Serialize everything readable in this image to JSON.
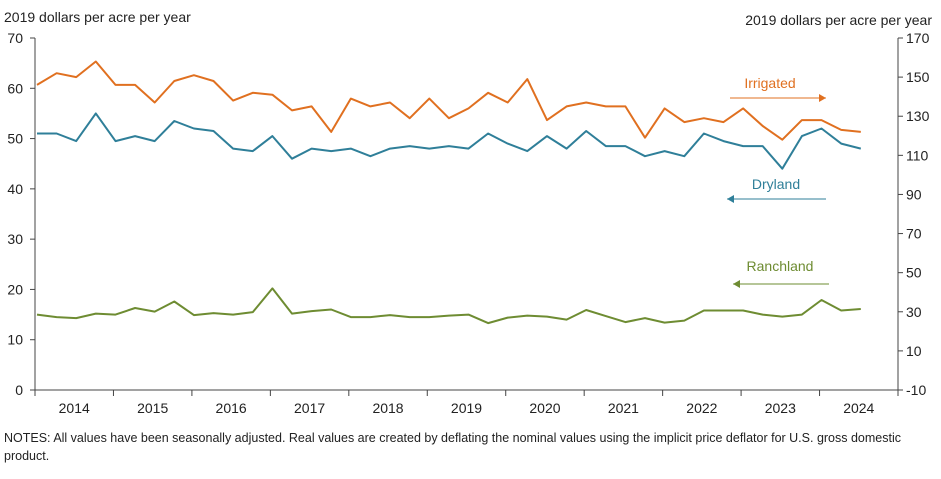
{
  "chart_data": {
    "type": "line",
    "left_axis_title": "2019 dollars per acre per year",
    "right_axis_title": "2019 dollars per acre per year",
    "left_ylim": [
      0,
      70
    ],
    "left_ticks": [
      "0",
      "10",
      "20",
      "30",
      "40",
      "50",
      "60",
      "70"
    ],
    "right_ylim": [
      -10,
      170
    ],
    "right_ticks": [
      "-10",
      "10",
      "30",
      "50",
      "70",
      "90",
      "110",
      "130",
      "150",
      "170"
    ],
    "x_labels": [
      "2014",
      "2015",
      "2016",
      "2017",
      "2018",
      "2019",
      "2020",
      "2021",
      "2022",
      "2023",
      "2024"
    ],
    "quarters_per_year": 4,
    "series": [
      {
        "name": "Irrigated",
        "axis": "right",
        "color": "#e07020",
        "arrow": "right",
        "values": [
          146,
          152,
          150,
          158,
          146,
          146,
          137,
          148,
          151,
          148,
          138,
          142,
          141,
          133,
          135,
          122,
          139,
          135,
          137,
          129,
          139,
          129,
          134,
          142,
          137,
          149,
          128,
          135,
          137,
          135,
          135,
          119,
          134,
          127,
          129,
          127,
          134,
          125,
          118,
          128,
          128,
          123,
          122
        ]
      },
      {
        "name": "Dryland",
        "axis": "left",
        "color": "#2f7f99",
        "arrow": "left",
        "values": [
          51,
          51,
          49.5,
          55,
          49.5,
          50.5,
          49.5,
          53.5,
          52,
          51.5,
          48,
          47.5,
          50.5,
          46,
          48,
          47.5,
          48,
          46.5,
          48,
          48.5,
          48,
          48.5,
          48,
          51,
          49,
          47.5,
          50.5,
          48,
          51.5,
          48.5,
          48.5,
          46.5,
          47.5,
          46.5,
          51,
          49.5,
          48.5,
          48.5,
          44,
          50.5,
          52,
          49,
          48
        ]
      },
      {
        "name": "Ranchland",
        "axis": "left",
        "color": "#6e8c32",
        "arrow": "left",
        "values": [
          15,
          14.5,
          14.3,
          15.2,
          15,
          16.3,
          15.6,
          17.6,
          14.9,
          15.3,
          15,
          15.5,
          20.2,
          15.2,
          15.7,
          16,
          14.5,
          14.5,
          14.9,
          14.5,
          14.5,
          14.8,
          15,
          13.3,
          14.4,
          14.8,
          14.6,
          14,
          15.9,
          14.7,
          13.5,
          14.3,
          13.4,
          13.8,
          15.8,
          15.8,
          15.8,
          15,
          14.6,
          15,
          17.9,
          15.8,
          16.1
        ]
      }
    ]
  },
  "notes": "NOTES: All values have been seasonally adjusted. Real values are created by deflating the nominal values using the implicit price deflator for U.S. gross domestic product."
}
